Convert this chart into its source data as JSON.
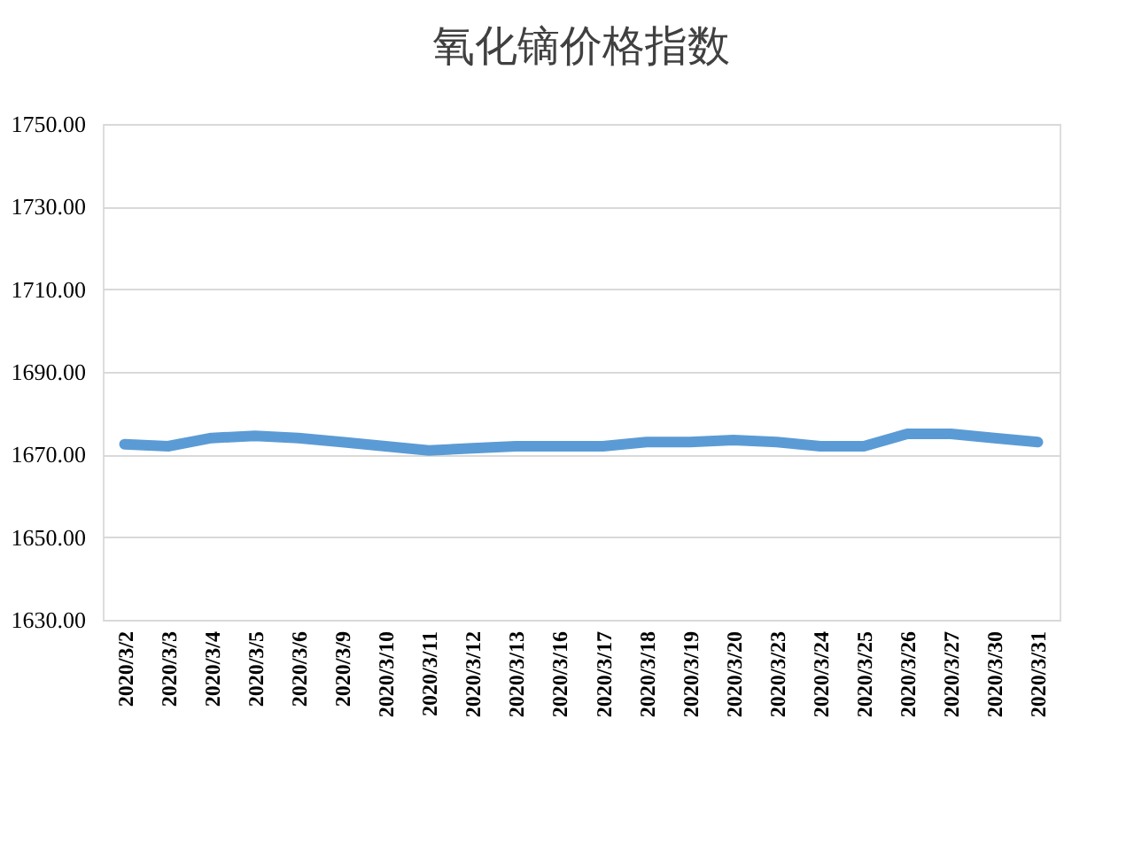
{
  "chart_data": {
    "type": "line",
    "title": "氧化镝价格指数",
    "categories": [
      "2020/3/2",
      "2020/3/3",
      "2020/3/4",
      "2020/3/5",
      "2020/3/6",
      "2020/3/9",
      "2020/3/10",
      "2020/3/11",
      "2020/3/12",
      "2020/3/13",
      "2020/3/16",
      "2020/3/17",
      "2020/3/18",
      "2020/3/19",
      "2020/3/20",
      "2020/3/23",
      "2020/3/24",
      "2020/3/25",
      "2020/3/26",
      "2020/3/27",
      "2020/3/30",
      "2020/3/31"
    ],
    "series": [
      {
        "color": "#5b9bd5",
        "values": [
          1672.5,
          1672,
          1674,
          1674.5,
          1674,
          1673,
          1672,
          1671,
          1671.5,
          1672,
          1672,
          1672,
          1673,
          1673,
          1673.5,
          1673,
          1672,
          1672,
          1675,
          1675,
          1674,
          1673
        ]
      }
    ],
    "ylim": [
      1630,
      1750
    ],
    "yticks": [
      {
        "value": 1630,
        "label": "1630.00"
      },
      {
        "value": 1650,
        "label": "1650.00"
      },
      {
        "value": 1670,
        "label": "1670.00"
      },
      {
        "value": 1690,
        "label": "1690.00"
      },
      {
        "value": 1710,
        "label": "1710.00"
      },
      {
        "value": 1730,
        "label": "1730.00"
      },
      {
        "value": 1750,
        "label": "1750.00"
      }
    ],
    "grid": "y",
    "legend": false,
    "marker": "none",
    "line_style": "solid"
  }
}
